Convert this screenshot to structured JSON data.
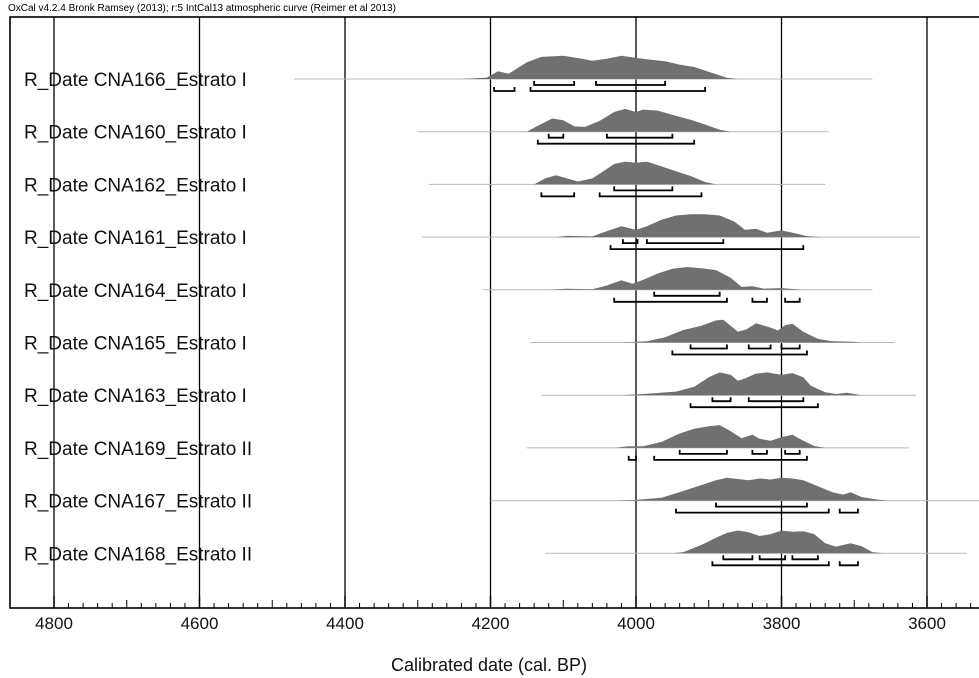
{
  "header": {
    "text": "OxCal v4.2.4 Bronk Ramsey (2013); r:5 IntCal13 atmospheric curve (Reimer et al 2013)"
  },
  "chart_data": {
    "type": "area",
    "xlabel": "Calibrated date (cal. BP)",
    "x_axis_reversed": true,
    "xlim": [
      4810,
      3520
    ],
    "xticks": [
      4800,
      4600,
      4400,
      4200,
      4000,
      3800,
      3600
    ],
    "grid": "vertical lines at major ticks",
    "colors": {
      "density_fill": "#707070",
      "range_line": "#000000",
      "baseline": "#b8b8b8",
      "grid": "#000000"
    },
    "series": [
      {
        "name": "R_Date CNA166_Estrato I",
        "baseline_range": [
          4470,
          3675
        ],
        "density": [
          [
            4240,
            0
          ],
          [
            4205,
            0.06
          ],
          [
            4190,
            0.32
          ],
          [
            4175,
            0.22
          ],
          [
            4150,
            0.7
          ],
          [
            4130,
            0.92
          ],
          [
            4100,
            0.97
          ],
          [
            4075,
            0.85
          ],
          [
            4060,
            0.76
          ],
          [
            4040,
            0.84
          ],
          [
            4020,
            0.97
          ],
          [
            4000,
            0.88
          ],
          [
            3980,
            0.8
          ],
          [
            3960,
            0.74
          ],
          [
            3940,
            0.6
          ],
          [
            3920,
            0.5
          ],
          [
            3895,
            0.25
          ],
          [
            3875,
            0.05
          ],
          [
            3860,
            0
          ]
        ],
        "ranges_68": [
          [
            4140,
            4085
          ],
          [
            4055,
            3960
          ]
        ],
        "ranges_95": [
          [
            4195,
            4167
          ],
          [
            4145,
            3905
          ]
        ]
      },
      {
        "name": "R_Date CNA160_Estrato I",
        "baseline_range": [
          4300,
          3735
        ],
        "density": [
          [
            4150,
            0
          ],
          [
            4135,
            0.25
          ],
          [
            4115,
            0.55
          ],
          [
            4100,
            0.48
          ],
          [
            4085,
            0.22
          ],
          [
            4070,
            0.2
          ],
          [
            4050,
            0.45
          ],
          [
            4030,
            0.82
          ],
          [
            4015,
            0.95
          ],
          [
            4000,
            0.82
          ],
          [
            3990,
            0.92
          ],
          [
            3970,
            0.88
          ],
          [
            3950,
            0.7
          ],
          [
            3925,
            0.5
          ],
          [
            3905,
            0.3
          ],
          [
            3885,
            0.08
          ],
          [
            3870,
            0
          ]
        ],
        "ranges_68": [
          [
            4120,
            4100
          ],
          [
            4040,
            3950
          ]
        ],
        "ranges_95": [
          [
            4135,
            3920
          ]
        ]
      },
      {
        "name": "R_Date CNA162_Estrato I",
        "baseline_range": [
          4285,
          3740
        ],
        "density": [
          [
            4140,
            0
          ],
          [
            4125,
            0.25
          ],
          [
            4110,
            0.38
          ],
          [
            4095,
            0.25
          ],
          [
            4080,
            0.12
          ],
          [
            4060,
            0.25
          ],
          [
            4045,
            0.55
          ],
          [
            4030,
            0.85
          ],
          [
            4015,
            0.95
          ],
          [
            4000,
            0.9
          ],
          [
            3985,
            0.95
          ],
          [
            3965,
            0.75
          ],
          [
            3945,
            0.55
          ],
          [
            3925,
            0.35
          ],
          [
            3905,
            0.1
          ],
          [
            3890,
            0
          ]
        ],
        "ranges_68": [
          [
            4030,
            3950
          ]
        ],
        "ranges_95": [
          [
            4130,
            4085
          ],
          [
            4050,
            3910
          ]
        ]
      },
      {
        "name": "R_Date CNA161_Estrato I",
        "baseline_range": [
          4295,
          3610
        ],
        "density": [
          [
            4110,
            0
          ],
          [
            4095,
            0.05
          ],
          [
            4060,
            0.03
          ],
          [
            4040,
            0.25
          ],
          [
            4020,
            0.45
          ],
          [
            4000,
            0.3
          ],
          [
            3985,
            0.45
          ],
          [
            3965,
            0.72
          ],
          [
            3945,
            0.9
          ],
          [
            3925,
            0.95
          ],
          [
            3905,
            0.95
          ],
          [
            3885,
            0.9
          ],
          [
            3865,
            0.65
          ],
          [
            3850,
            0.3
          ],
          [
            3835,
            0.35
          ],
          [
            3820,
            0.18
          ],
          [
            3800,
            0.28
          ],
          [
            3780,
            0.15
          ],
          [
            3765,
            0.04
          ],
          [
            3745,
            0
          ]
        ],
        "ranges_68": [
          [
            4018,
            3998
          ],
          [
            3985,
            3880
          ]
        ],
        "ranges_95": [
          [
            4035,
            3770
          ]
        ]
      },
      {
        "name": "R_Date CNA164_Estrato I",
        "baseline_range": [
          4210,
          3675
        ],
        "density": [
          [
            4120,
            0
          ],
          [
            4095,
            0.04
          ],
          [
            4060,
            0.02
          ],
          [
            4040,
            0.18
          ],
          [
            4020,
            0.4
          ],
          [
            4005,
            0.25
          ],
          [
            3990,
            0.42
          ],
          [
            3970,
            0.68
          ],
          [
            3950,
            0.88
          ],
          [
            3930,
            0.95
          ],
          [
            3910,
            0.9
          ],
          [
            3890,
            0.82
          ],
          [
            3870,
            0.5
          ],
          [
            3855,
            0.12
          ],
          [
            3840,
            0.15
          ],
          [
            3825,
            0.05
          ],
          [
            3800,
            0.07
          ],
          [
            3780,
            0.02
          ],
          [
            3770,
            0
          ]
        ],
        "ranges_68": [
          [
            3975,
            3885
          ]
        ],
        "ranges_95": [
          [
            4030,
            3875
          ],
          [
            3840,
            3820
          ],
          [
            3795,
            3775
          ]
        ]
      },
      {
        "name": "R_Date CNA165_Estrato I",
        "baseline_range": [
          4145,
          3645
        ],
        "density": [
          [
            4020,
            0
          ],
          [
            3985,
            0.05
          ],
          [
            3960,
            0.22
          ],
          [
            3935,
            0.52
          ],
          [
            3910,
            0.7
          ],
          [
            3890,
            0.92
          ],
          [
            3880,
            0.95
          ],
          [
            3870,
            0.7
          ],
          [
            3860,
            0.45
          ],
          [
            3848,
            0.55
          ],
          [
            3835,
            0.8
          ],
          [
            3815,
            0.62
          ],
          [
            3805,
            0.5
          ],
          [
            3795,
            0.72
          ],
          [
            3785,
            0.78
          ],
          [
            3770,
            0.45
          ],
          [
            3750,
            0.15
          ],
          [
            3730,
            0.05
          ],
          [
            3700,
            0.03
          ],
          [
            3690,
            0
          ]
        ],
        "ranges_68": [
          [
            3925,
            3875
          ],
          [
            3845,
            3815
          ],
          [
            3800,
            3775
          ]
        ],
        "ranges_95": [
          [
            3950,
            3765
          ]
        ]
      },
      {
        "name": "R_Date CNA163_Estrato I",
        "baseline_range": [
          4130,
          3615
        ],
        "density": [
          [
            4020,
            0
          ],
          [
            3990,
            0.05
          ],
          [
            3945,
            0.15
          ],
          [
            3920,
            0.35
          ],
          [
            3900,
            0.75
          ],
          [
            3885,
            0.95
          ],
          [
            3870,
            0.85
          ],
          [
            3860,
            0.6
          ],
          [
            3850,
            0.7
          ],
          [
            3835,
            0.9
          ],
          [
            3820,
            0.95
          ],
          [
            3800,
            0.85
          ],
          [
            3785,
            0.92
          ],
          [
            3770,
            0.75
          ],
          [
            3760,
            0.4
          ],
          [
            3740,
            0.12
          ],
          [
            3725,
            0.05
          ],
          [
            3710,
            0.1
          ],
          [
            3700,
            0.05
          ],
          [
            3690,
            0
          ]
        ],
        "ranges_68": [
          [
            3895,
            3870
          ],
          [
            3845,
            3770
          ]
        ],
        "ranges_95": [
          [
            3925,
            3750
          ]
        ]
      },
      {
        "name": "R_Date CNA169_Estrato II",
        "baseline_range": [
          4150,
          3625
        ],
        "density": [
          [
            4030,
            0
          ],
          [
            4010,
            0.07
          ],
          [
            3990,
            0.07
          ],
          [
            3965,
            0.25
          ],
          [
            3940,
            0.6
          ],
          [
            3920,
            0.8
          ],
          [
            3900,
            0.9
          ],
          [
            3885,
            0.95
          ],
          [
            3870,
            0.7
          ],
          [
            3855,
            0.4
          ],
          [
            3840,
            0.55
          ],
          [
            3830,
            0.38
          ],
          [
            3815,
            0.3
          ],
          [
            3800,
            0.45
          ],
          [
            3785,
            0.55
          ],
          [
            3770,
            0.3
          ],
          [
            3755,
            0.08
          ],
          [
            3740,
            0
          ]
        ],
        "ranges_68": [
          [
            3940,
            3875
          ],
          [
            3840,
            3820
          ],
          [
            3795,
            3775
          ]
        ],
        "ranges_95": [
          [
            4010,
            4000
          ],
          [
            3975,
            3765
          ]
        ]
      },
      {
        "name": "R_Date CNA167_Estrato II",
        "baseline_range": [
          4200,
          3520
        ],
        "density": [
          [
            4030,
            0
          ],
          [
            4000,
            0.03
          ],
          [
            3965,
            0.12
          ],
          [
            3935,
            0.4
          ],
          [
            3910,
            0.65
          ],
          [
            3890,
            0.85
          ],
          [
            3875,
            0.95
          ],
          [
            3860,
            0.9
          ],
          [
            3845,
            0.85
          ],
          [
            3830,
            0.92
          ],
          [
            3815,
            0.88
          ],
          [
            3800,
            0.95
          ],
          [
            3785,
            0.92
          ],
          [
            3770,
            0.85
          ],
          [
            3750,
            0.6
          ],
          [
            3730,
            0.35
          ],
          [
            3715,
            0.25
          ],
          [
            3705,
            0.35
          ],
          [
            3690,
            0.15
          ],
          [
            3670,
            0.05
          ],
          [
            3655,
            0
          ]
        ],
        "ranges_68": [
          [
            3890,
            3765
          ]
        ],
        "ranges_95": [
          [
            3945,
            3735
          ],
          [
            3720,
            3695
          ]
        ]
      },
      {
        "name": "R_Date CNA168_Estrato II",
        "baseline_range": [
          4125,
          3545
        ],
        "density": [
          [
            3950,
            0
          ],
          [
            3935,
            0.05
          ],
          [
            3910,
            0.35
          ],
          [
            3890,
            0.65
          ],
          [
            3875,
            0.85
          ],
          [
            3860,
            0.95
          ],
          [
            3845,
            0.88
          ],
          [
            3830,
            0.72
          ],
          [
            3815,
            0.8
          ],
          [
            3800,
            0.95
          ],
          [
            3785,
            0.9
          ],
          [
            3770,
            0.92
          ],
          [
            3755,
            0.8
          ],
          [
            3740,
            0.42
          ],
          [
            3725,
            0.28
          ],
          [
            3715,
            0.35
          ],
          [
            3705,
            0.42
          ],
          [
            3690,
            0.3
          ],
          [
            3675,
            0.05
          ],
          [
            3660,
            0
          ]
        ],
        "ranges_68": [
          [
            3880,
            3840
          ],
          [
            3830,
            3795
          ],
          [
            3785,
            3750
          ]
        ],
        "ranges_95": [
          [
            3895,
            3735
          ],
          [
            3720,
            3695
          ]
        ]
      }
    ]
  }
}
